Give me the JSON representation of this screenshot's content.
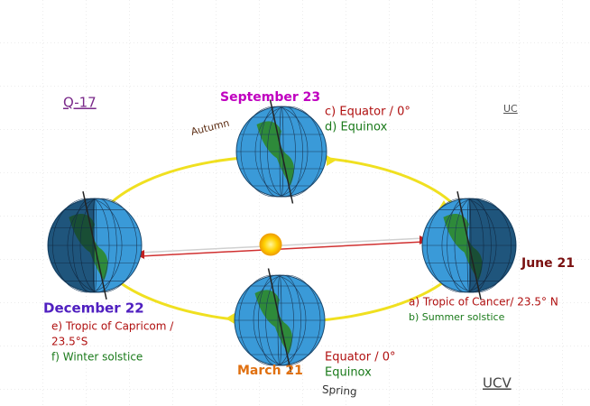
{
  "header": {
    "title": "Q-17",
    "mark_top": "UC",
    "mark_bottom": "UCV"
  },
  "september": {
    "date": "September 23",
    "season": "Autumn",
    "line1": "c) Equator / 0°",
    "line2": "d) Equinox"
  },
  "june": {
    "date": "June 21",
    "line1": "a) Tropic of Cancer/ 23.5° N",
    "line2": "b) Summer solstice"
  },
  "december": {
    "date": "December 22",
    "line1": "e) Tropic of Capricom /",
    "line1b": "23.5°S",
    "line2": "f) Winter solstice"
  },
  "march": {
    "date": "March 21",
    "line1": "Equator / 0°",
    "line2": "Equinox",
    "season": "Spring"
  }
}
